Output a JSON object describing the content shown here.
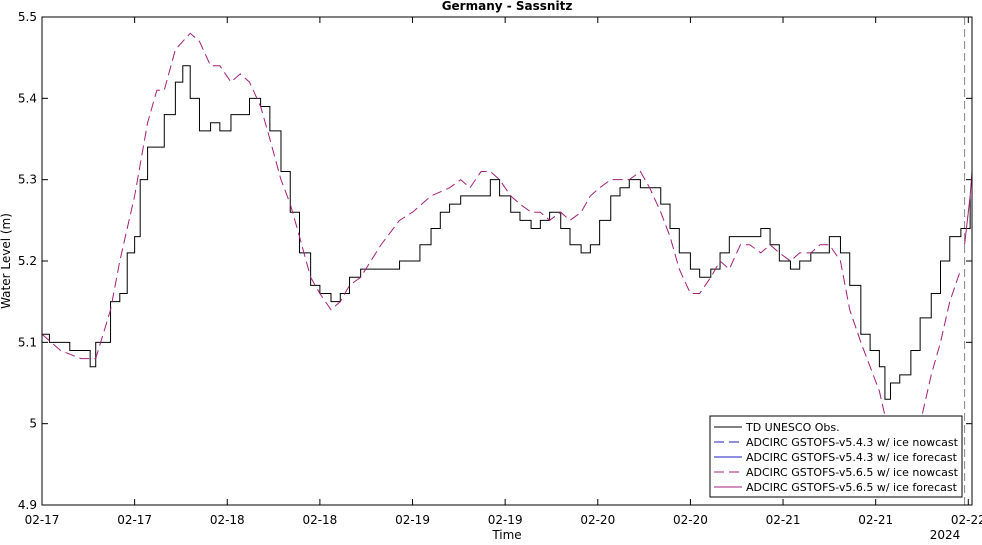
{
  "chart_data": {
    "type": "line",
    "title": "Germany - Sassnitz",
    "xlabel": "Time",
    "ylabel": "Water Level (m)",
    "x_sublabel": "2024",
    "xlim": [
      17,
      22.02
    ],
    "ylim": [
      4.9,
      5.5
    ],
    "xticks": [
      {
        "value": 17,
        "label": "02-17"
      },
      {
        "value": 17.5,
        "label": "02-17"
      },
      {
        "value": 18,
        "label": "02-18"
      },
      {
        "value": 18.5,
        "label": "02-18"
      },
      {
        "value": 19,
        "label": "02-19"
      },
      {
        "value": 19.5,
        "label": "02-19"
      },
      {
        "value": 20,
        "label": "02-20"
      },
      {
        "value": 20.5,
        "label": "02-20"
      },
      {
        "value": 21,
        "label": "02-21"
      },
      {
        "value": 21.5,
        "label": "02-21"
      },
      {
        "value": 22,
        "label": "02-22"
      }
    ],
    "yticks": [
      4.9,
      5,
      5.1,
      5.2,
      5.3,
      5.4,
      5.5
    ],
    "forecast_start": 21.98,
    "legend": "lower right",
    "series": [
      {
        "name": "TD UNESCO Obs.",
        "color": "#000000",
        "linestyle": "solid",
        "drawstyle": "steps",
        "x": [
          17.0,
          17.04,
          17.1,
          17.15,
          17.21,
          17.26,
          17.29,
          17.31,
          17.37,
          17.42,
          17.46,
          17.5,
          17.53,
          17.57,
          17.62,
          17.66,
          17.72,
          17.76,
          17.8,
          17.85,
          17.91,
          17.96,
          18.02,
          18.07,
          18.12,
          18.18,
          18.23,
          18.29,
          18.34,
          18.39,
          18.45,
          18.5,
          18.56,
          18.61,
          18.66,
          18.72,
          18.83,
          18.93,
          19.0,
          19.04,
          19.1,
          19.15,
          19.2,
          19.26,
          19.31,
          19.37,
          19.42,
          19.47,
          19.53,
          19.58,
          19.64,
          19.69,
          19.74,
          19.8,
          19.85,
          19.91,
          19.96,
          20.01,
          20.07,
          20.12,
          20.17,
          20.23,
          20.28,
          20.34,
          20.39,
          20.44,
          20.5,
          20.55,
          20.61,
          20.66,
          20.71,
          20.77,
          20.82,
          20.88,
          20.93,
          20.98,
          21.04,
          21.09,
          21.15,
          21.2,
          21.25,
          21.31,
          21.36,
          21.42,
          21.47,
          21.52,
          21.55,
          21.58,
          21.63,
          21.69,
          21.74,
          21.8,
          21.85,
          21.9,
          21.96,
          22.01
        ],
        "values": [
          5.11,
          5.1,
          5.1,
          5.09,
          5.09,
          5.07,
          5.1,
          5.1,
          5.15,
          5.16,
          5.21,
          5.23,
          5.3,
          5.34,
          5.34,
          5.38,
          5.42,
          5.44,
          5.4,
          5.36,
          5.37,
          5.36,
          5.38,
          5.38,
          5.4,
          5.39,
          5.36,
          5.31,
          5.26,
          5.21,
          5.17,
          5.16,
          5.15,
          5.16,
          5.18,
          5.19,
          5.19,
          5.2,
          5.2,
          5.22,
          5.24,
          5.26,
          5.27,
          5.28,
          5.28,
          5.28,
          5.3,
          5.28,
          5.26,
          5.25,
          5.24,
          5.25,
          5.26,
          5.24,
          5.22,
          5.21,
          5.22,
          5.25,
          5.28,
          5.29,
          5.3,
          5.29,
          5.29,
          5.27,
          5.24,
          5.21,
          5.19,
          5.18,
          5.19,
          5.21,
          5.23,
          5.23,
          5.23,
          5.24,
          5.22,
          5.2,
          5.19,
          5.2,
          5.21,
          5.21,
          5.23,
          5.21,
          5.17,
          5.11,
          5.09,
          5.07,
          5.03,
          5.05,
          5.06,
          5.09,
          5.13,
          5.16,
          5.2,
          5.23,
          5.24,
          5.28
        ]
      },
      {
        "name": "ADCIRC GSTOFS-v5.4.3  w/ ice nowcast",
        "color": "#1f1fbf",
        "linestyle": "dashed",
        "x": [],
        "values": []
      },
      {
        "name": "ADCIRC GSTOFS-v5.4.3  w/ ice forecast",
        "color": "#1f1fbf",
        "linestyle": "solid",
        "x": [],
        "values": []
      },
      {
        "name": "ADCIRC GSTOFS-v5.6.5 w/ ice nowcast",
        "color": "#a3207a",
        "linestyle": "dashed",
        "x": [
          17.0,
          17.1,
          17.21,
          17.29,
          17.37,
          17.42,
          17.5,
          17.57,
          17.62,
          17.66,
          17.72,
          17.8,
          17.85,
          17.91,
          17.96,
          18.02,
          18.07,
          18.12,
          18.18,
          18.23,
          18.29,
          18.34,
          18.39,
          18.45,
          18.5,
          18.56,
          18.61,
          18.66,
          18.72,
          18.83,
          18.93,
          19.0,
          19.1,
          19.2,
          19.26,
          19.31,
          19.37,
          19.42,
          19.47,
          19.53,
          19.58,
          19.64,
          19.69,
          19.74,
          19.8,
          19.85,
          19.91,
          19.96,
          20.01,
          20.07,
          20.12,
          20.17,
          20.23,
          20.28,
          20.34,
          20.39,
          20.44,
          20.5,
          20.55,
          20.61,
          20.66,
          20.71,
          20.77,
          20.82,
          20.88,
          20.93,
          20.98,
          21.04,
          21.09,
          21.15,
          21.2,
          21.25,
          21.31,
          21.36,
          21.42,
          21.47,
          21.52,
          21.55,
          21.58,
          21.63,
          21.69,
          21.74,
          21.8,
          21.85,
          21.9,
          21.96
        ],
        "values": [
          5.11,
          5.09,
          5.08,
          5.08,
          5.14,
          5.2,
          5.28,
          5.37,
          5.41,
          5.41,
          5.46,
          5.48,
          5.47,
          5.44,
          5.44,
          5.42,
          5.43,
          5.42,
          5.39,
          5.35,
          5.3,
          5.27,
          5.23,
          5.18,
          5.16,
          5.14,
          5.15,
          5.17,
          5.18,
          5.22,
          5.25,
          5.26,
          5.28,
          5.29,
          5.3,
          5.29,
          5.31,
          5.31,
          5.3,
          5.28,
          5.27,
          5.26,
          5.26,
          5.25,
          5.26,
          5.25,
          5.26,
          5.28,
          5.29,
          5.3,
          5.3,
          5.3,
          5.31,
          5.29,
          5.26,
          5.23,
          5.19,
          5.16,
          5.16,
          5.18,
          5.2,
          5.19,
          5.22,
          5.22,
          5.21,
          5.22,
          5.21,
          5.2,
          5.21,
          5.21,
          5.22,
          5.22,
          5.2,
          5.14,
          5.1,
          5.07,
          5.04,
          5.01,
          4.97,
          4.95,
          4.97,
          5.0,
          5.06,
          5.1,
          5.15,
          5.19
        ]
      },
      {
        "name": "ADCIRC GSTOFS-v5.6.5 w/ ice forecast",
        "color": "#a3207a",
        "linestyle": "solid",
        "x": [
          21.98,
          22.01,
          22.02
        ],
        "values": [
          5.22,
          5.28,
          5.31
        ]
      }
    ]
  }
}
